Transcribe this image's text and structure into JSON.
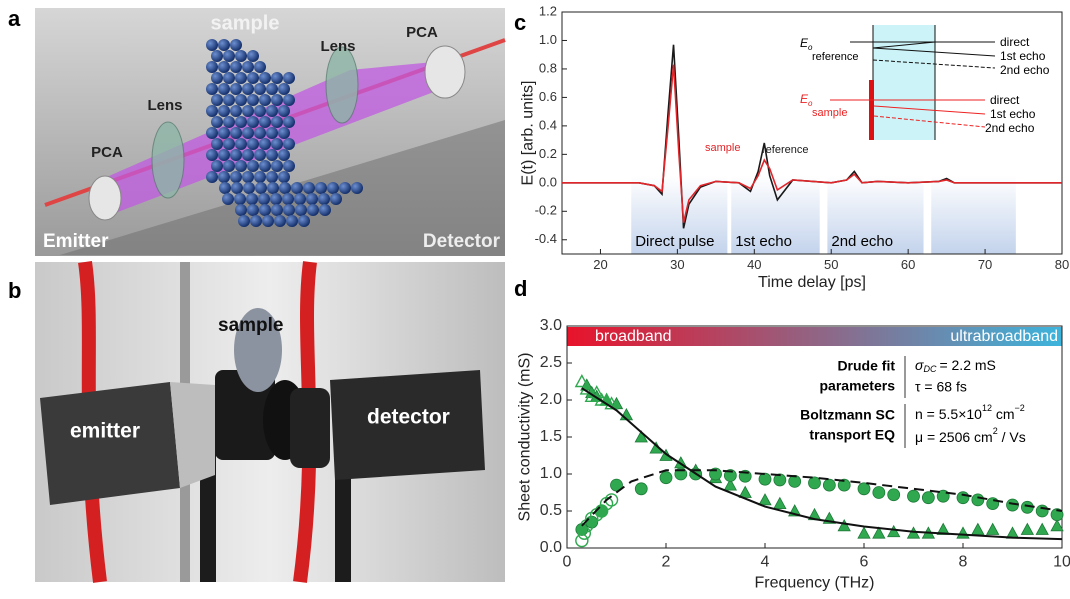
{
  "panel_labels": [
    "a",
    "b",
    "c",
    "d"
  ],
  "scheme_labels": {
    "sample": "sample",
    "lens_left": "Lens",
    "pca_left": "PCA",
    "lens_right": "Lens",
    "pca_right": "PCA",
    "emitter": "Emitter",
    "detector": "Detector"
  },
  "photo_labels": {
    "sample": "sample",
    "emitter": "emitter",
    "detector": "detector"
  },
  "chart_data": [
    {
      "type": "line",
      "ylabel": "E(t) [arb. units]",
      "xlabel": "Time delay [ps]",
      "xlim": [
        15,
        80
      ],
      "ylim": [
        -0.5,
        1.2
      ],
      "xticks": [
        20,
        30,
        40,
        50,
        60,
        70,
        80
      ],
      "yticks": [
        -0.4,
        -0.2,
        {
          "value": 0,
          "label": "0.0"
        },
        0.2,
        0.4,
        0.6,
        0.8,
        {
          "value": 1,
          "label": "1.0"
        },
        1.2
      ],
      "x": [
        15,
        25,
        27,
        28,
        28.8,
        29.5,
        30.2,
        30.8,
        31.5,
        33,
        35,
        38,
        39.5,
        40.5,
        41.3,
        42,
        43,
        45,
        50,
        52,
        53,
        54,
        56,
        60,
        64,
        65,
        66,
        70,
        80
      ],
      "series": [
        {
          "name": "reference",
          "color": "#1a1a1a",
          "values": [
            0,
            0,
            -0.02,
            -0.08,
            0.5,
            0.97,
            0.3,
            -0.32,
            -0.15,
            -0.03,
            0.01,
            0,
            -0.06,
            0.08,
            0.28,
            0.05,
            -0.12,
            0.02,
            0,
            0.02,
            0.08,
            0,
            0.01,
            0,
            0.01,
            0.03,
            0,
            0,
            0
          ]
        },
        {
          "name": "sample",
          "color": "#e0262a",
          "values": [
            0,
            0,
            -0.02,
            -0.06,
            0.4,
            0.83,
            0.2,
            -0.28,
            -0.12,
            -0.02,
            0.01,
            0,
            -0.04,
            0.05,
            0.16,
            0.1,
            -0.05,
            0.02,
            0,
            0.02,
            0.06,
            0,
            0.01,
            0,
            0.01,
            0.02,
            0,
            0,
            0
          ]
        }
      ],
      "bands": [
        {
          "from": 24,
          "to": 36.5,
          "label": "Direct pulse"
        },
        {
          "from": 37,
          "to": 48.5,
          "label": "1st echo"
        },
        {
          "from": 49.5,
          "to": 62,
          "label": "2nd echo"
        },
        {
          "from": 63,
          "to": 74,
          "label": null
        }
      ],
      "inset": {
        "symbol": "E",
        "symbol_sub": "o",
        "reference": "reference",
        "sample": "sample",
        "rows": [
          "direct",
          "1st echo",
          "2nd echo"
        ]
      }
    },
    {
      "type": "scatter",
      "xlabel": "Frequency (THz)",
      "ylabel": "Sheet conductivity (mS)",
      "xlim": [
        0,
        10
      ],
      "ylim": [
        0,
        3
      ],
      "xticks": [
        0,
        2,
        4,
        6,
        8,
        10
      ],
      "yticks": [
        {
          "value": 0,
          "label": "0.0"
        },
        0.5,
        {
          "value": 1,
          "label": "1.0"
        },
        1.5,
        {
          "value": 2,
          "label": "2.0"
        },
        2.5,
        {
          "value": 3,
          "label": "3.0"
        }
      ],
      "band": {
        "left": "broadband",
        "right": "ultrabroadband",
        "colors": [
          "#e8132b",
          "#3cb4dc"
        ]
      },
      "annotations": {
        "drude": [
          "Drude fit",
          "parameters"
        ],
        "sigma": [
          "σ",
          "DC",
          "= 2.2 mS"
        ],
        "tau": "τ = 68 fs",
        "boltzmann": [
          "Boltzmann SC",
          "transport EQ"
        ],
        "n": [
          "n = 5.5×10",
          "12",
          " cm",
          "−2"
        ],
        "mu": [
          "μ = 2506 cm",
          "2",
          " / Vs"
        ]
      },
      "series": [
        {
          "marker": "triangle",
          "filled": true,
          "color": "#2fa84f",
          "x": [
            0.4,
            0.5,
            0.6,
            0.8,
            1.0,
            1.2,
            1.5,
            1.8,
            2.0,
            2.3,
            2.6,
            3.0,
            3.3,
            3.6,
            4.0,
            4.3,
            4.6,
            5.0,
            5.3,
            5.6,
            6.0,
            6.3,
            6.6,
            7.0,
            7.3,
            7.6,
            8.0,
            8.3,
            8.6,
            9.0,
            9.3,
            9.6,
            9.9
          ],
          "values": [
            2.2,
            2.1,
            2.05,
            2.0,
            1.95,
            1.8,
            1.5,
            1.35,
            1.25,
            1.15,
            1.05,
            0.95,
            0.85,
            0.75,
            0.65,
            0.6,
            0.5,
            0.45,
            0.4,
            0.3,
            0.2,
            0.2,
            0.22,
            0.2,
            0.2,
            0.25,
            0.2,
            0.25,
            0.25,
            0.2,
            0.25,
            0.25,
            0.3
          ]
        },
        {
          "marker": "triangle",
          "filled": false,
          "color": "#2fa84f",
          "x": [
            0.3,
            0.4,
            0.5,
            0.6,
            0.7,
            0.8,
            0.9
          ],
          "values": [
            2.25,
            2.15,
            2.05,
            2.1,
            2.0,
            2.0,
            1.95
          ]
        },
        {
          "marker": "circle",
          "filled": true,
          "color": "#2fa84f",
          "x": [
            0.3,
            0.5,
            0.7,
            1.0,
            1.5,
            2.0,
            2.3,
            2.6,
            3.0,
            3.3,
            3.6,
            4.0,
            4.3,
            4.6,
            5.0,
            5.3,
            5.6,
            6.0,
            6.3,
            6.6,
            7.0,
            7.3,
            7.6,
            8.0,
            8.3,
            8.6,
            9.0,
            9.3,
            9.6,
            9.9
          ],
          "values": [
            0.25,
            0.35,
            0.5,
            0.85,
            0.8,
            0.95,
            1.0,
            1.0,
            1.0,
            0.98,
            0.97,
            0.93,
            0.92,
            0.9,
            0.88,
            0.85,
            0.85,
            0.8,
            0.75,
            0.72,
            0.7,
            0.68,
            0.7,
            0.68,
            0.65,
            0.6,
            0.58,
            0.55,
            0.5,
            0.45
          ]
        },
        {
          "marker": "circle",
          "filled": false,
          "color": "#2fa84f",
          "x": [
            0.3,
            0.35,
            0.4,
            0.5,
            0.6,
            0.7,
            0.8,
            0.9
          ],
          "values": [
            0.1,
            0.2,
            0.3,
            0.4,
            0.45,
            0.5,
            0.6,
            0.65
          ]
        },
        {
          "line": "solid",
          "color": "#111111",
          "x": [
            0.3,
            1,
            2,
            3,
            4,
            5,
            6,
            7,
            8,
            9,
            10
          ],
          "values": [
            2.16,
            1.86,
            1.27,
            0.83,
            0.56,
            0.39,
            0.29,
            0.22,
            0.18,
            0.14,
            0.12
          ]
        },
        {
          "line": "dashed",
          "color": "#111111",
          "x": [
            0.3,
            0.8,
            1.3,
            2,
            3,
            4,
            5,
            6,
            7,
            8,
            9,
            10
          ],
          "values": [
            0.3,
            0.65,
            0.9,
            1.05,
            1.05,
            1.0,
            0.95,
            0.88,
            0.8,
            0.72,
            0.6,
            0.5
          ]
        }
      ]
    }
  ]
}
